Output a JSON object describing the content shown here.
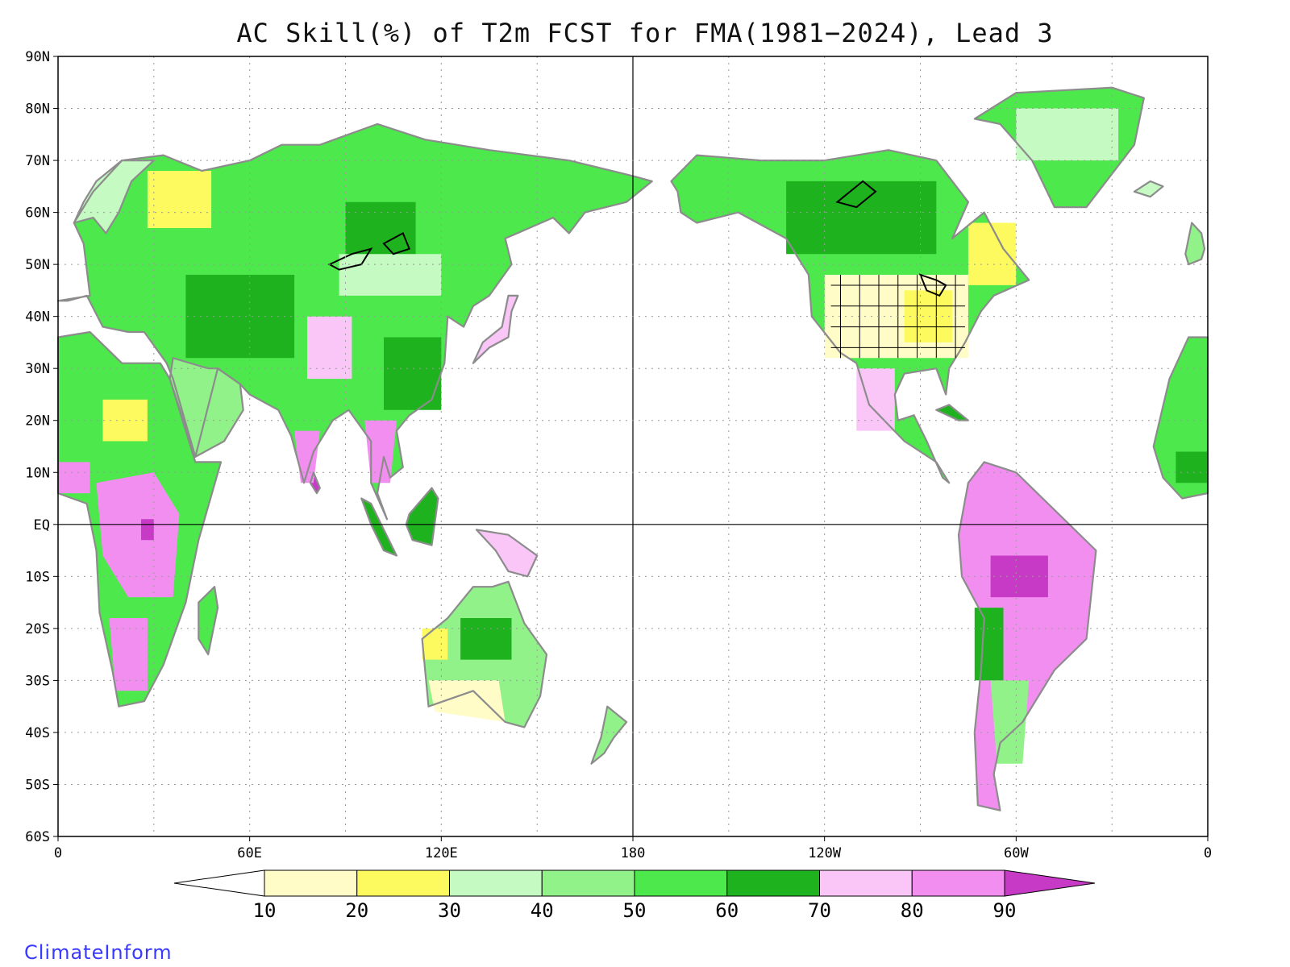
{
  "title": "AC Skill(%) of T2m FCST for FMA(1981−2024), Lead 3",
  "credit": "ClimateInform",
  "map": {
    "projection": "equirectangular",
    "lon_range": [
      0,
      360
    ],
    "lat_range": [
      -60,
      90
    ],
    "gridlines": "dotted",
    "land_outline_color": "#8c8c8c",
    "lake_outline_color": "#000000",
    "reference_lines": [
      "EQ",
      "180"
    ]
  },
  "lat_ticks": [
    "90N",
    "80N",
    "70N",
    "60N",
    "50N",
    "40N",
    "30N",
    "20N",
    "10N",
    "EQ",
    "10S",
    "20S",
    "30S",
    "40S",
    "50S",
    "60S"
  ],
  "lon_ticks": [
    "0",
    "60E",
    "120E",
    "180",
    "120W",
    "60W",
    "0"
  ],
  "colorbar": {
    "labels": [
      "10",
      "20",
      "30",
      "40",
      "50",
      "60",
      "70",
      "80",
      "90"
    ],
    "colors": [
      "#ffffff",
      "#fffcc8",
      "#fdfa5f",
      "#c5fbc3",
      "#92f28a",
      "#4ce84c",
      "#1eb31e",
      "#fac6f8",
      "#f38ef1",
      "#c73ac6"
    ],
    "extend": "both"
  }
}
